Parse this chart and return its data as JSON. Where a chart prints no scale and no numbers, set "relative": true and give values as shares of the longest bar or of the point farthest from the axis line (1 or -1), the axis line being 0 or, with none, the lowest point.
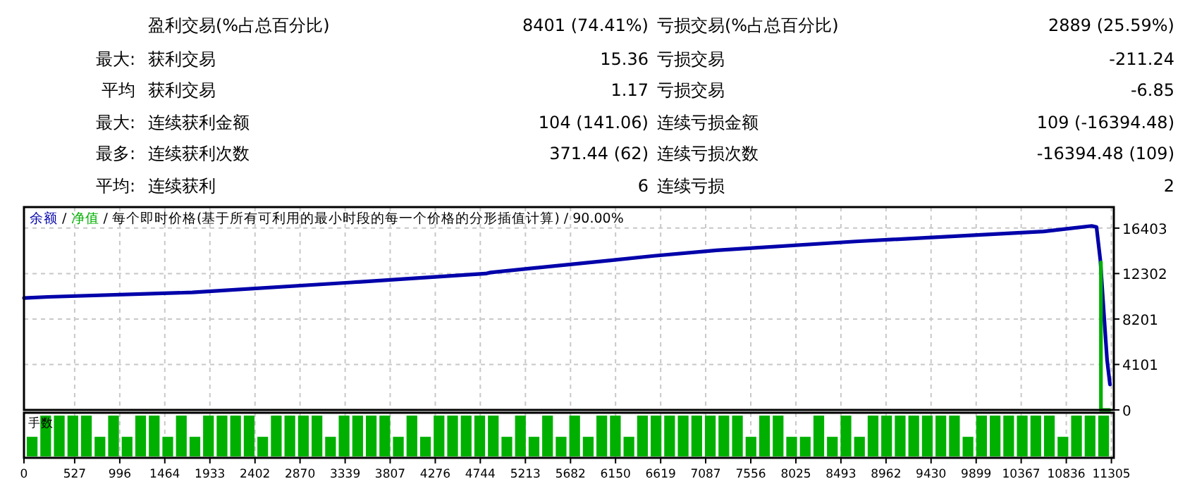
{
  "chart_data": [
    {
      "type": "other",
      "annotations": [
        null,
        "盈利交易(%占总百分比)",
        "8401 (74.41%)",
        "亏损交易(%占总百分比)",
        "2889 (25.59%)",
        "最大:",
        "获利交易",
        "15.36",
        "亏损交易",
        "-211.24",
        "平均",
        "获利交易",
        "1.17",
        "亏损交易",
        "-6.85",
        "最大:",
        "连续获利金额",
        "104 (141.06)",
        "连续亏损金额",
        "109 (-16394.48)",
        "最多:",
        "连续获利次数",
        "371.44 (62)",
        "连续亏损次数",
        "-16394.48 (109)",
        "平均:",
        "连续获利",
        "6",
        "连续亏损",
        "2"
      ]
    },
    {
      "type": "line",
      "annotations": [
        "/"
      ],
      "title": "/ 每个即时价格(基于所有可利用的最小时段的每一个价格的分形插值计算) / 90.00%",
      "legend": "top left",
      "grid": true,
      "tick_labels": "y",
      "xlim": [
        0,
        11330
      ],
      "ylim": [
        0,
        18300
      ],
      "xticks": [
        0,
        527,
        996,
        1464,
        1933,
        2402,
        2870,
        3339,
        3807,
        4276,
        4744,
        5213,
        5682,
        6150,
        6619,
        7087,
        7556,
        8025,
        8493,
        8962,
        9430,
        9899,
        10367,
        10836,
        11305
      ],
      "yticks": [
        0,
        4101,
        8201,
        12302,
        16403
      ],
      "series": [
        {
          "name": "余额",
          "color": "#0000aa",
          "x": [
            0,
            250,
            1750,
            3400,
            4800,
            4850,
            6100,
            6550,
            7200,
            8650,
            10600,
            11100,
            11150,
            11190,
            11230,
            11260,
            11290
          ],
          "values": [
            10100,
            10200,
            10600,
            11500,
            12300,
            12400,
            13500,
            13900,
            14400,
            15200,
            16100,
            16600,
            16500,
            13500,
            8300,
            4500,
            2300
          ]
        },
        {
          "name": "净值",
          "color": "#00b000",
          "x": [
            11196,
            11196,
            11284
          ],
          "values": [
            13300,
            0,
            0
          ]
        }
      ]
    },
    {
      "type": "bar",
      "relative": true,
      "ylabel": "手数",
      "color": "#00b000",
      "grid": "x",
      "tick_labels": "x",
      "xlim": [
        0,
        11330
      ],
      "xticks": [
        0,
        527,
        996,
        1464,
        1933,
        2402,
        2870,
        3339,
        3807,
        4276,
        4744,
        5213,
        5682,
        6150,
        6619,
        7087,
        7556,
        8025,
        8493,
        8962,
        9430,
        9899,
        10367,
        10836,
        11305
      ],
      "x": [
        85,
        226,
        367,
        508,
        649,
        790,
        931,
        1072,
        1213,
        1354,
        1495,
        1636,
        1777,
        1918,
        2059,
        2200,
        2341,
        2482,
        2623,
        2764,
        2905,
        3046,
        3187,
        3328,
        3469,
        3610,
        3751,
        3892,
        4033,
        4174,
        4315,
        4456,
        4597,
        4738,
        4879,
        5020,
        5161,
        5302,
        5443,
        5584,
        5725,
        5866,
        6007,
        6148,
        6289,
        6430,
        6571,
        6712,
        6853,
        6994,
        7135,
        7276,
        7417,
        7558,
        7699,
        7840,
        7981,
        8122,
        8263,
        8404,
        8545,
        8686,
        8827,
        8968,
        9109,
        9250,
        9391,
        9532,
        9673,
        9814,
        9955,
        10096,
        10237,
        10378,
        10519,
        10660,
        10801,
        10942,
        11083,
        11224
      ],
      "values": [
        0.48,
        1,
        1,
        1,
        1,
        0.48,
        1,
        0.48,
        1,
        1,
        0.48,
        1,
        0.48,
        1,
        1,
        1,
        1,
        0.48,
        1,
        1,
        1,
        1,
        0.48,
        1,
        1,
        1,
        1,
        0.48,
        1,
        0.48,
        1,
        1,
        1,
        1,
        1,
        0.48,
        1,
        0.48,
        1,
        0.48,
        1,
        0.48,
        1,
        1,
        0.48,
        1,
        1,
        1,
        1,
        1,
        1,
        1,
        1,
        0.48,
        1,
        1,
        0.48,
        0.48,
        1,
        0.48,
        1,
        0.48,
        1,
        1,
        1,
        1,
        1,
        1,
        1,
        0.48,
        1,
        1,
        1,
        1,
        1,
        1,
        0.48,
        1,
        1,
        1
      ]
    }
  ]
}
